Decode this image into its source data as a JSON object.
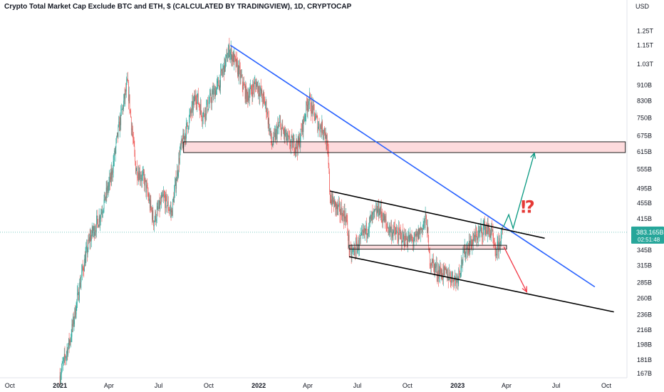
{
  "chart_data": {
    "type": "candlestick",
    "title": "Crypto Total Market Cap Exclude BTC and ETH, $ (CALCULATED BY TRADINGVIEW), 1D, CRYPTOCAP",
    "currency_label": "USD",
    "y_scale": "log",
    "ylim": [
      163,
      1500
    ],
    "xlim": [
      "2020-09-13",
      "2023-11-08"
    ],
    "y_ticks": [
      {
        "value": 1250,
        "label": "1.25T"
      },
      {
        "value": 1150,
        "label": "1.15T"
      },
      {
        "value": 1030,
        "label": "1.03T"
      },
      {
        "value": 910,
        "label": "910B"
      },
      {
        "value": 830,
        "label": "830B"
      },
      {
        "value": 750,
        "label": "750B"
      },
      {
        "value": 675,
        "label": "675B"
      },
      {
        "value": 615,
        "label": "615B"
      },
      {
        "value": 555,
        "label": "555B"
      },
      {
        "value": 495,
        "label": "495B"
      },
      {
        "value": 455,
        "label": "455B"
      },
      {
        "value": 415,
        "label": "415B"
      },
      {
        "value": 345,
        "label": "345B"
      },
      {
        "value": 315,
        "label": "315B"
      },
      {
        "value": 285,
        "label": "285B"
      },
      {
        "value": 260,
        "label": "260B"
      },
      {
        "value": 236,
        "label": "236B"
      },
      {
        "value": 216,
        "label": "216B"
      },
      {
        "value": 198,
        "label": "198B"
      },
      {
        "value": 181,
        "label": "181B"
      },
      {
        "value": 167,
        "label": "167B"
      }
    ],
    "x_ticks": [
      {
        "date": "2020-10-01",
        "label": "Oct",
        "bold": false
      },
      {
        "date": "2021-01-01",
        "label": "2021",
        "bold": true
      },
      {
        "date": "2021-04-01",
        "label": "Apr",
        "bold": false
      },
      {
        "date": "2021-07-01",
        "label": "Jul",
        "bold": false
      },
      {
        "date": "2021-10-01",
        "label": "Oct",
        "bold": false
      },
      {
        "date": "2022-01-01",
        "label": "2022",
        "bold": true
      },
      {
        "date": "2022-04-01",
        "label": "Apr",
        "bold": false
      },
      {
        "date": "2022-07-01",
        "label": "Jul",
        "bold": false
      },
      {
        "date": "2022-10-01",
        "label": "Oct",
        "bold": false
      },
      {
        "date": "2023-01-01",
        "label": "2023",
        "bold": true
      },
      {
        "date": "2023-04-01",
        "label": "Apr",
        "bold": false
      },
      {
        "date": "2023-07-01",
        "label": "Jul",
        "bold": false
      },
      {
        "date": "2023-10-01",
        "label": "Oct",
        "bold": false
      }
    ],
    "price_path": [
      [
        "2021-01-01",
        165
      ],
      [
        "2021-01-20",
        205
      ],
      [
        "2021-02-10",
        300
      ],
      [
        "2021-02-25",
        370
      ],
      [
        "2021-03-15",
        420
      ],
      [
        "2021-04-05",
        530
      ],
      [
        "2021-04-20",
        720
      ],
      [
        "2021-05-05",
        920
      ],
      [
        "2021-05-20",
        560
      ],
      [
        "2021-06-05",
        520
      ],
      [
        "2021-06-22",
        410
      ],
      [
        "2021-07-10",
        470
      ],
      [
        "2021-07-25",
        430
      ],
      [
        "2021-08-10",
        620
      ],
      [
        "2021-08-28",
        760
      ],
      [
        "2021-09-08",
        860
      ],
      [
        "2021-09-20",
        760
      ],
      [
        "2021-10-05",
        840
      ],
      [
        "2021-10-20",
        920
      ],
      [
        "2021-11-08",
        1120
      ],
      [
        "2021-11-25",
        990
      ],
      [
        "2021-12-10",
        850
      ],
      [
        "2021-12-28",
        920
      ],
      [
        "2022-01-15",
        800
      ],
      [
        "2022-01-25",
        640
      ],
      [
        "2022-02-08",
        720
      ],
      [
        "2022-02-25",
        650
      ],
      [
        "2022-03-15",
        640
      ],
      [
        "2022-04-02",
        840
      ],
      [
        "2022-04-20",
        720
      ],
      [
        "2022-05-02",
        700
      ],
      [
        "2022-05-08",
        600
      ],
      [
        "2022-05-12",
        470
      ],
      [
        "2022-05-25",
        440
      ],
      [
        "2022-06-10",
        420
      ],
      [
        "2022-06-18",
        335
      ],
      [
        "2022-07-05",
        360
      ],
      [
        "2022-07-25",
        410
      ],
      [
        "2022-08-10",
        440
      ],
      [
        "2022-08-25",
        395
      ],
      [
        "2022-09-10",
        380
      ],
      [
        "2022-09-25",
        370
      ],
      [
        "2022-10-15",
        365
      ],
      [
        "2022-11-05",
        415
      ],
      [
        "2022-11-10",
        330
      ],
      [
        "2022-11-25",
        305
      ],
      [
        "2022-12-15",
        298
      ],
      [
        "2022-12-30",
        290
      ],
      [
        "2023-01-15",
        345
      ],
      [
        "2023-02-05",
        375
      ],
      [
        "2023-02-20",
        395
      ],
      [
        "2023-03-05",
        380
      ],
      [
        "2023-03-11",
        335
      ],
      [
        "2023-03-25",
        383
      ]
    ],
    "current_price": {
      "value": 383.165,
      "label": "383.165B",
      "countdown": "02:51:48"
    },
    "zones": [
      {
        "name": "resistance-zone",
        "x0": "2021-08-16",
        "x1": "2023-11-05",
        "y0": 612,
        "y1": 652
      },
      {
        "name": "support-zone",
        "x0": "2022-06-16",
        "x1": "2023-04-01",
        "y0": 347,
        "y1": 355
      }
    ],
    "trendlines": [
      {
        "name": "descending-blue-trendline",
        "color": "#2962ff",
        "points": [
          [
            "2021-11-10",
            1150
          ],
          [
            "2023-09-10",
            278
          ]
        ]
      },
      {
        "name": "channel-upper-line",
        "color": "#000000",
        "points": [
          [
            "2022-05-12",
            488
          ],
          [
            "2023-06-10",
            370
          ]
        ]
      },
      {
        "name": "channel-lower-line",
        "color": "#000000",
        "points": [
          [
            "2022-06-16",
            332
          ],
          [
            "2023-10-15",
            240
          ]
        ]
      }
    ],
    "projections": [
      {
        "name": "bullish-projection-arrow",
        "color": "#089981",
        "points": [
          [
            "2023-03-26",
            395
          ],
          [
            "2023-04-05",
            425
          ],
          [
            "2023-04-13",
            392
          ],
          [
            "2023-05-22",
            610
          ]
        ]
      },
      {
        "name": "bearish-projection-arrow",
        "color": "#f23645",
        "points": [
          [
            "2023-03-27",
            352
          ],
          [
            "2023-05-08",
            270
          ]
        ]
      }
    ],
    "annotation": {
      "text": "⁉",
      "date": "2023-05-10",
      "value": 430,
      "color": "#e53935"
    }
  }
}
